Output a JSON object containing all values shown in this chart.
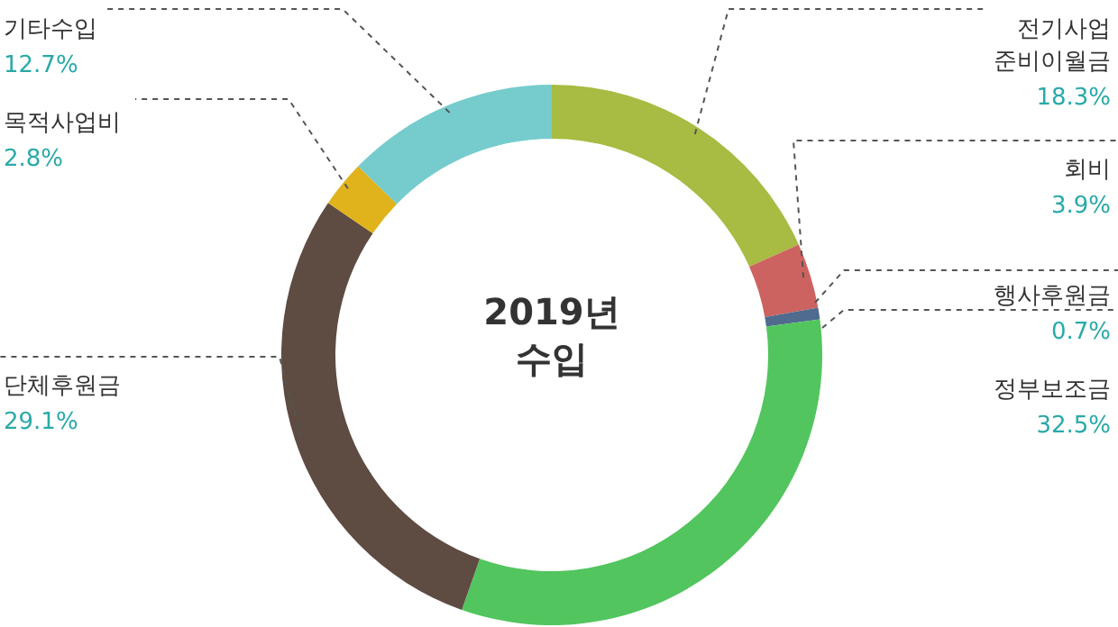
{
  "chart_data": {
    "type": "donut",
    "title": "2019년 수입",
    "categories": [
      "전기사업 준비이월금",
      "회비",
      "행사후원금",
      "정부보조금",
      "단체후원금",
      "목적사업비",
      "기타수입"
    ],
    "values": [
      18.3,
      3.9,
      0.7,
      32.5,
      29.1,
      2.8,
      12.7
    ],
    "colors": [
      "#a8bb42",
      "#cd6360",
      "#4f6b8e",
      "#52c55e",
      "#5e4b42",
      "#e0b21c",
      "#76cccc"
    ],
    "value_labels": [
      "18.3%",
      "3.9%",
      "0.7%",
      "32.5%",
      "29.1%",
      "2.8%",
      "12.7%"
    ],
    "legend": false
  }
}
